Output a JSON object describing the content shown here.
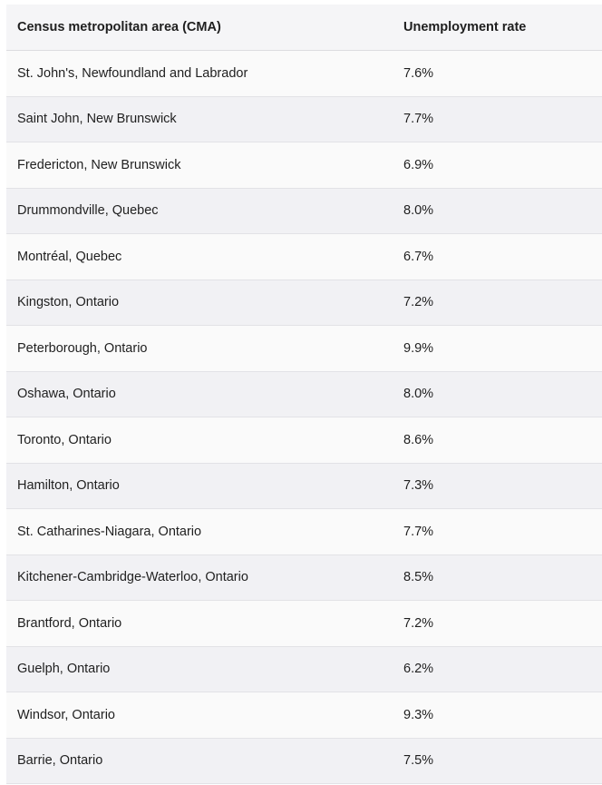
{
  "table": {
    "headers": [
      "Census metropolitan area (CMA)",
      "Unemployment rate"
    ],
    "rows": [
      [
        "St. John's, Newfoundland and Labrador",
        "7.6%"
      ],
      [
        "Saint John, New Brunswick",
        "7.7%"
      ],
      [
        "Fredericton, New Brunswick",
        "6.9%"
      ],
      [
        "Drummondville, Quebec",
        "8.0%"
      ],
      [
        "Montréal, Quebec",
        "6.7%"
      ],
      [
        "Kingston, Ontario",
        "7.2%"
      ],
      [
        "Peterborough, Ontario",
        "9.9%"
      ],
      [
        "Oshawa, Ontario",
        "8.0%"
      ],
      [
        "Toronto, Ontario",
        "8.6%"
      ],
      [
        "Hamilton, Ontario",
        "7.3%"
      ],
      [
        "St. Catharines-Niagara, Ontario",
        "7.7%"
      ],
      [
        "Kitchener-Cambridge-Waterloo, Ontario",
        "8.5%"
      ],
      [
        "Brantford, Ontario",
        "7.2%"
      ],
      [
        "Guelph, Ontario",
        "6.2%"
      ],
      [
        "Windsor, Ontario",
        "9.3%"
      ],
      [
        "Barrie, Ontario",
        "7.5%"
      ]
    ]
  }
}
